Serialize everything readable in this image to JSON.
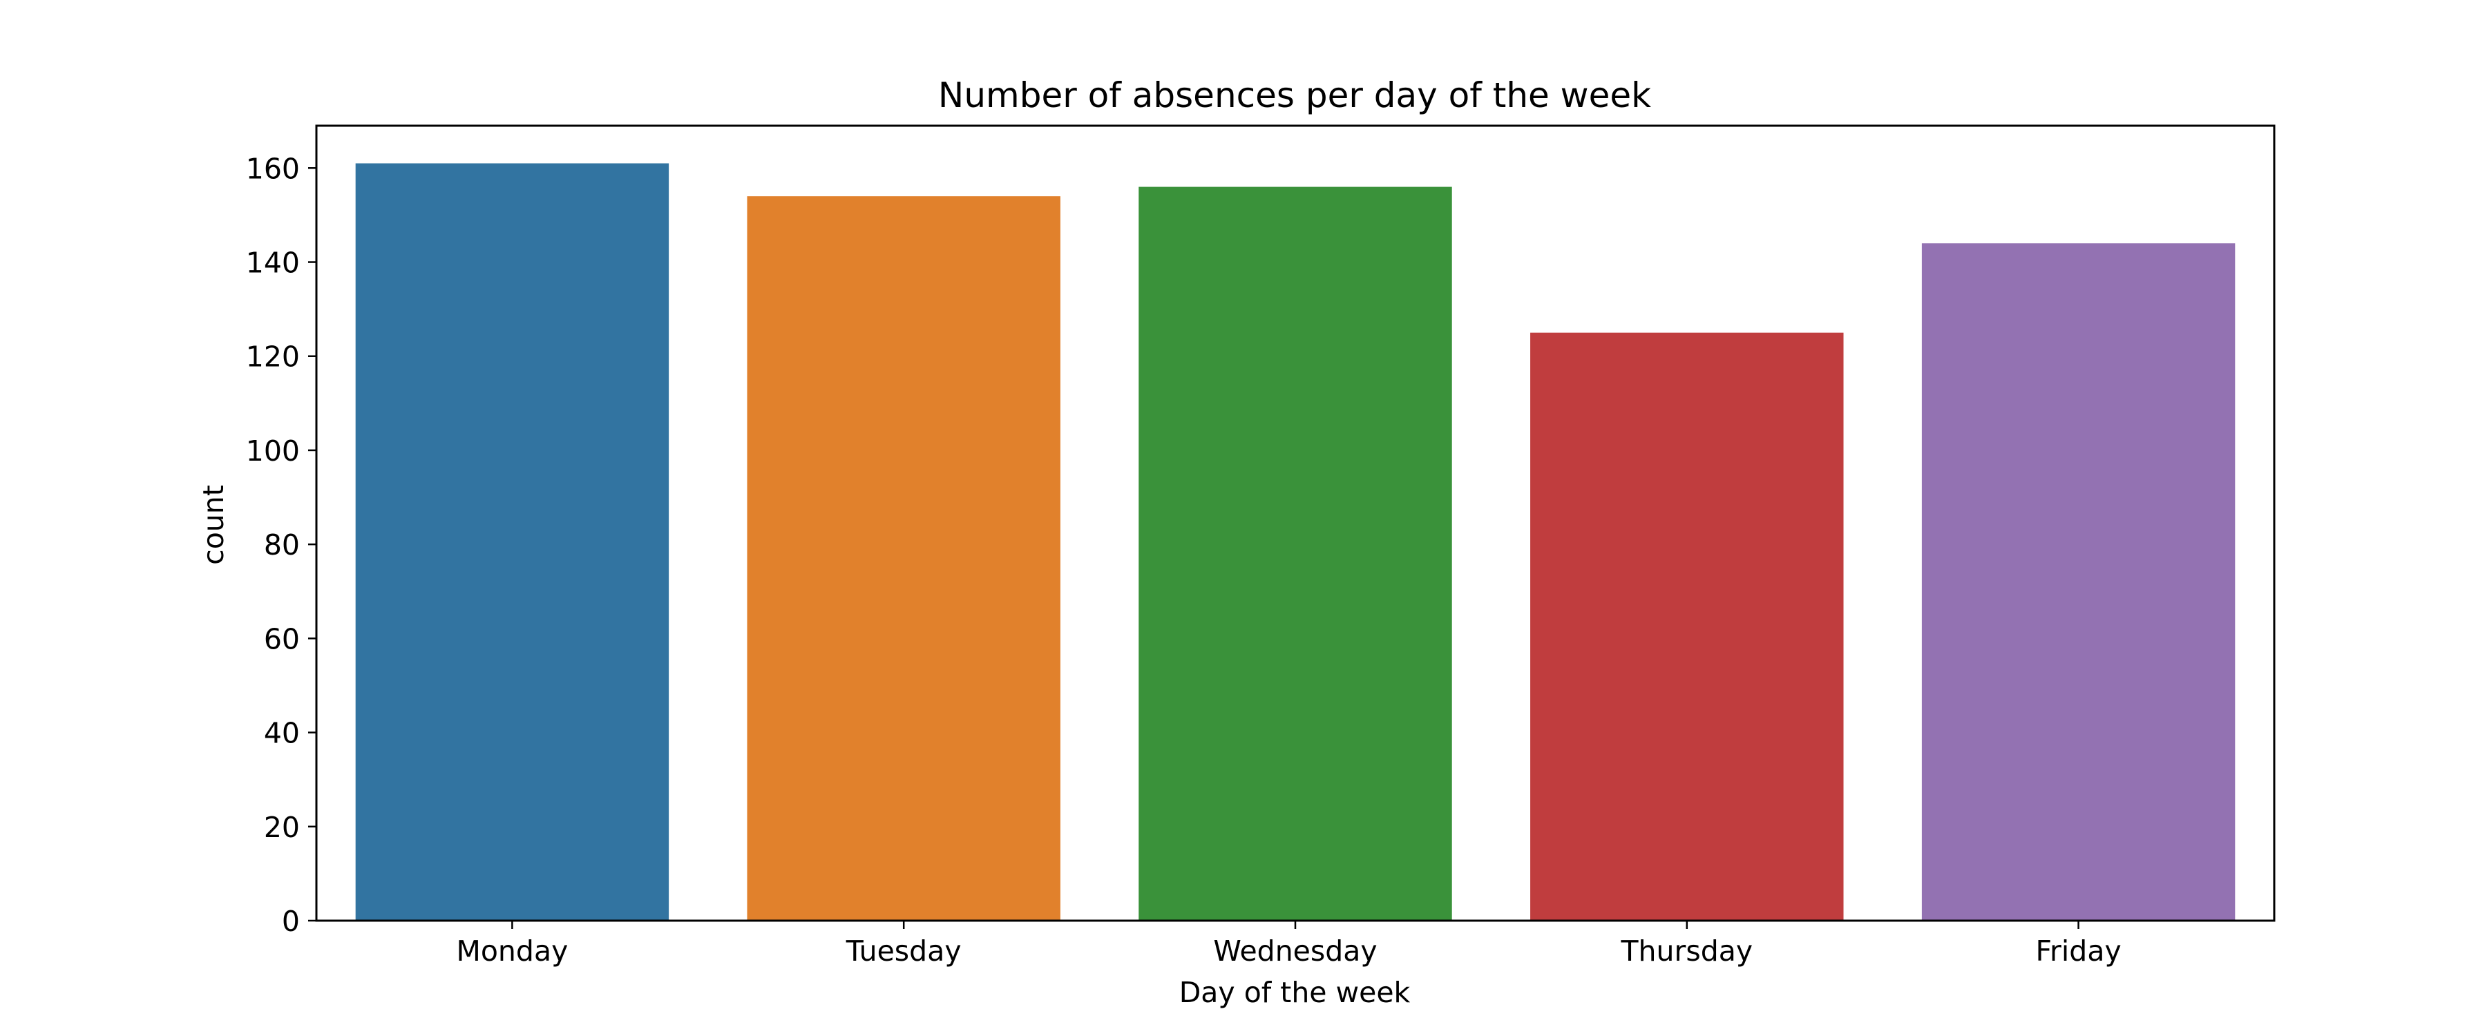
{
  "chart_data": {
    "type": "bar",
    "title": "Number of absences per day of the week",
    "xlabel": "Day of the week",
    "ylabel": "count",
    "categories": [
      "Monday",
      "Tuesday",
      "Wednesday",
      "Thursday",
      "Friday"
    ],
    "values": [
      161,
      154,
      156,
      125,
      144
    ],
    "colors": [
      "#3274a1",
      "#e1812c",
      "#3a923a",
      "#c03d3e",
      "#9372b2"
    ],
    "ylim": [
      0,
      169
    ],
    "yticks": [
      0,
      20,
      40,
      60,
      80,
      100,
      120,
      140,
      160
    ],
    "grid": false,
    "legend": false
  }
}
